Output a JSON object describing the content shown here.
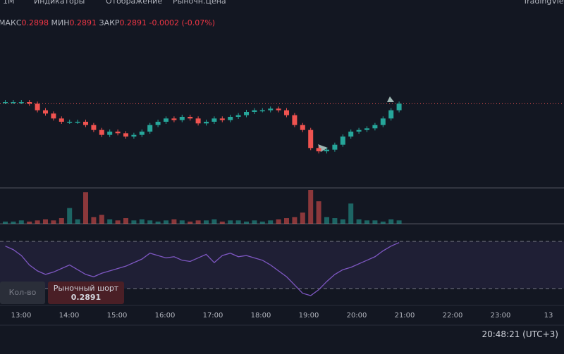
{
  "toolbar": {
    "interval": "1М",
    "indicators": "Индикаторы",
    "display": "Отображение",
    "price_type": "Рыночн.Цена",
    "brand": "TradingView"
  },
  "legend": {
    "high_label": "МАКС",
    "high": "0.2898",
    "low_label": "МИН",
    "low": "0.2891",
    "close_label": "ЗАКР",
    "close": "0.2891",
    "change": "-0.0002 (-0.07%)"
  },
  "chart_data": {
    "type": "candlestick",
    "close": [
      0.2892,
      0.2892,
      0.2892,
      0.2891,
      0.2887,
      0.2885,
      0.2882,
      0.288,
      0.288,
      0.288,
      0.2878,
      0.2875,
      0.2872,
      0.2874,
      0.2873,
      0.2871,
      0.2872,
      0.2874,
      0.2878,
      0.288,
      0.2882,
      0.2881,
      0.2883,
      0.2882,
      0.2879,
      0.288,
      0.2882,
      0.2881,
      0.2883,
      0.2884,
      0.2886,
      0.2887,
      0.2887,
      0.2888,
      0.2887,
      0.2884,
      0.2878,
      0.2875,
      0.2864,
      0.2862,
      0.2863,
      0.2866,
      0.2871,
      0.2874,
      0.2875,
      0.2876,
      0.2878,
      0.2882,
      0.2887,
      0.2891
    ],
    "volume": [
      2,
      2,
      3,
      2,
      3,
      4,
      3,
      5,
      14,
      4,
      28,
      6,
      8,
      4,
      3,
      5,
      3,
      4,
      3,
      2,
      3,
      4,
      3,
      2,
      3,
      3,
      4,
      2,
      3,
      3,
      2,
      3,
      2,
      3,
      4,
      5,
      6,
      10,
      30,
      20,
      6,
      5,
      4,
      18,
      4,
      3,
      3,
      2,
      4,
      3
    ],
    "rsi": [
      66,
      63,
      58,
      50,
      45,
      42,
      44,
      47,
      50,
      46,
      42,
      40,
      43,
      45,
      47,
      49,
      52,
      55,
      60,
      58,
      56,
      57,
      54,
      53,
      56,
      59,
      52,
      58,
      60,
      57,
      58,
      56,
      54,
      50,
      45,
      40,
      33,
      26,
      24,
      29,
      36,
      42,
      46,
      48,
      51,
      54,
      57,
      62,
      66,
      69
    ],
    "time_labels": [
      "13:00",
      "14:00",
      "15:00",
      "16:00",
      "17:00",
      "18:00",
      "19:00",
      "20:00",
      "21:00",
      "22:00",
      "23:00",
      "13"
    ]
  },
  "order": {
    "qty_label": "Кол-во",
    "short_label": "Рыночный шорт",
    "short_price": "0.2891"
  },
  "clock": "20:48:21 (UTC+3)"
}
